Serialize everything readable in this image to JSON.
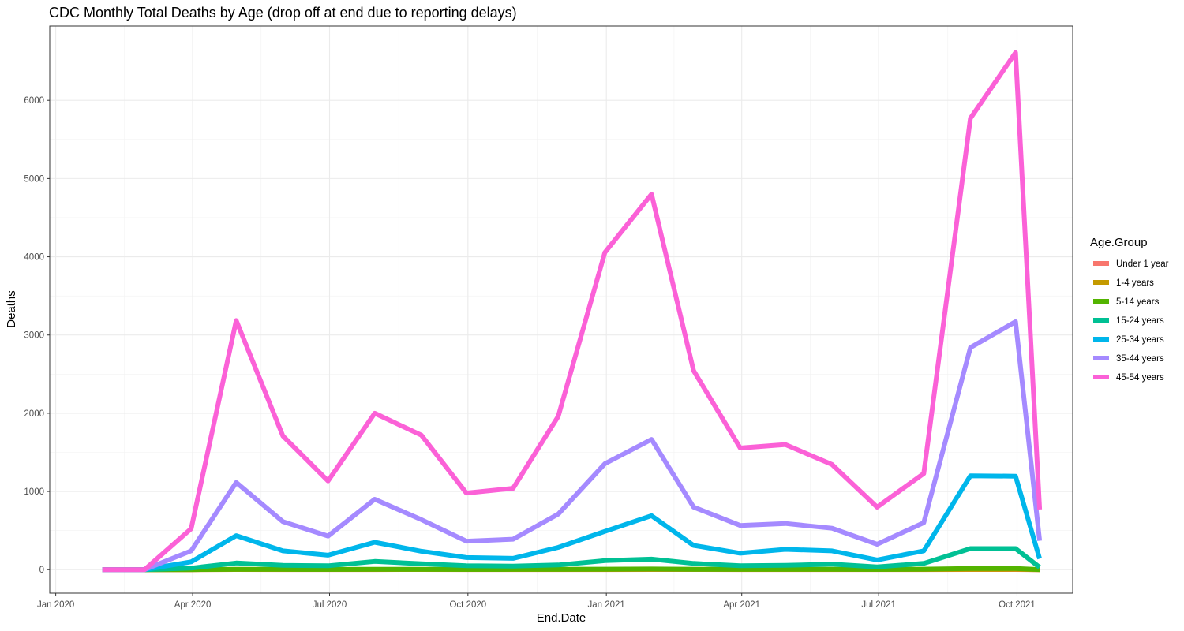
{
  "chart_data": {
    "type": "line",
    "title": "CDC Monthly Total Deaths by Age (drop off at end due to reporting delays)",
    "xlabel": "End.Date",
    "ylabel": "Deaths",
    "x_ticks": [
      {
        "date": "2020-01-01",
        "label": "Jan 2020"
      },
      {
        "date": "2020-04-01",
        "label": "Apr 2020"
      },
      {
        "date": "2020-07-01",
        "label": "Jul 2020"
      },
      {
        "date": "2020-10-01",
        "label": "Oct 2020"
      },
      {
        "date": "2021-01-01",
        "label": "Jan 2021"
      },
      {
        "date": "2021-04-01",
        "label": "Apr 2021"
      },
      {
        "date": "2021-07-01",
        "label": "Jul 2021"
      },
      {
        "date": "2021-10-01",
        "label": "Oct 2021"
      }
    ],
    "y_ticks": [
      0,
      1000,
      2000,
      3000,
      4000,
      5000,
      6000
    ],
    "y_tick_labels": [
      "0",
      "1000",
      "2000",
      "3000",
      "4000",
      "5000",
      "6000"
    ],
    "xlim": [
      "2019-12-28",
      "2021-11-07"
    ],
    "ylim": [
      -300,
      6950
    ],
    "grid": true,
    "legend_title": "Age.Group",
    "legend_position": "right",
    "x": [
      "2020-02-01",
      "2020-02-29",
      "2020-03-31",
      "2020-04-30",
      "2020-05-31",
      "2020-06-30",
      "2020-07-31",
      "2020-08-31",
      "2020-09-30",
      "2020-10-31",
      "2020-11-30",
      "2020-12-31",
      "2021-01-31",
      "2021-02-28",
      "2021-03-31",
      "2021-04-30",
      "2021-05-31",
      "2021-06-30",
      "2021-07-31",
      "2021-08-31",
      "2021-09-30",
      "2021-10-16"
    ],
    "series": [
      {
        "name": "Under 1 year",
        "color": "#F8766D",
        "values": [
          0,
          0,
          0,
          2,
          1,
          1,
          1,
          2,
          1,
          1,
          1,
          1,
          2,
          2,
          1,
          1,
          1,
          1,
          1,
          2,
          3,
          0
        ]
      },
      {
        "name": "1-4 years",
        "color": "#C49A00",
        "values": [
          0,
          0,
          0,
          3,
          2,
          2,
          2,
          3,
          2,
          2,
          2,
          3,
          4,
          4,
          2,
          2,
          2,
          2,
          2,
          4,
          5,
          0
        ]
      },
      {
        "name": "5-14 years",
        "color": "#53B400",
        "values": [
          0,
          0,
          1,
          5,
          5,
          4,
          6,
          5,
          4,
          5,
          6,
          7,
          9,
          6,
          5,
          6,
          6,
          4,
          7,
          15,
          15,
          1
        ]
      },
      {
        "name": "15-24 years",
        "color": "#00C094",
        "values": [
          0,
          0,
          20,
          85,
          55,
          50,
          105,
          75,
          50,
          45,
          60,
          115,
          135,
          80,
          50,
          55,
          70,
          35,
          80,
          270,
          270,
          30
        ]
      },
      {
        "name": "25-34 years",
        "color": "#00B6EB",
        "values": [
          0,
          0,
          100,
          435,
          240,
          185,
          350,
          235,
          155,
          145,
          285,
          490,
          690,
          310,
          210,
          260,
          240,
          125,
          240,
          1200,
          1195,
          140
        ]
      },
      {
        "name": "35-44 years",
        "color": "#A58AFF",
        "values": [
          0,
          0,
          240,
          1115,
          615,
          430,
          900,
          640,
          365,
          390,
          710,
          1355,
          1665,
          800,
          565,
          590,
          530,
          325,
          600,
          2840,
          3170,
          370
        ]
      },
      {
        "name": "45-54 years",
        "color": "#FB61D7",
        "values": [
          0,
          0,
          525,
          3185,
          1710,
          1135,
          2000,
          1720,
          980,
          1040,
          1960,
          4055,
          4800,
          2545,
          1555,
          1600,
          1345,
          800,
          1230,
          5770,
          6610,
          770
        ]
      }
    ]
  }
}
